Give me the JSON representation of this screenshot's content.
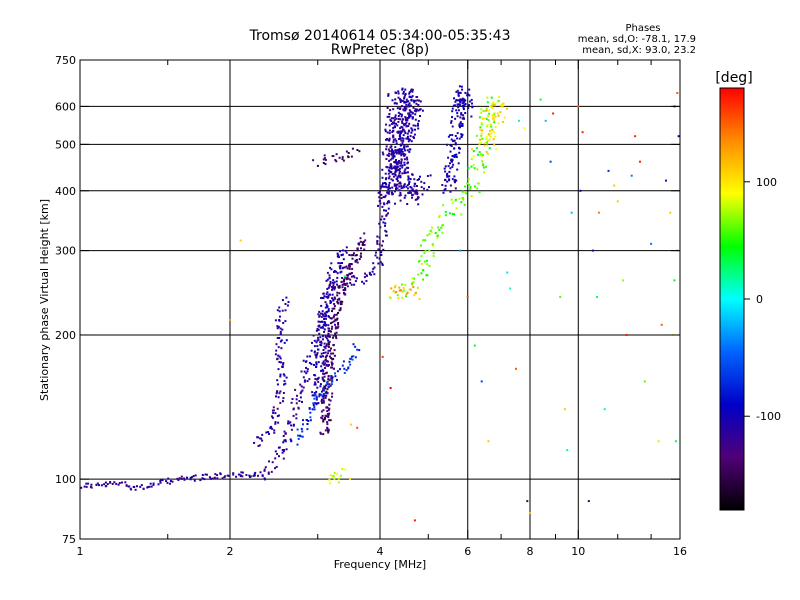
{
  "chart_data": {
    "type": "scatter",
    "title": "Tromsø 20140614 05:34:00-05:35:43",
    "subtitle": "RwPretec (8p)",
    "xlabel": "Frequency [MHz]",
    "ylabel": "Stationary phase Virtual Height [km]",
    "x_scale": "log",
    "y_scale": "log",
    "xlim": [
      1,
      16
    ],
    "ylim": [
      75,
      750
    ],
    "grid": true,
    "x_ticks": [
      1,
      2,
      4,
      6,
      8,
      10,
      16
    ],
    "x_minor_ticks": [
      1.5,
      3,
      5,
      7,
      9,
      12,
      14
    ],
    "x_gridlines": [
      2,
      4,
      6,
      8,
      10
    ],
    "y_ticks": [
      75,
      100,
      200,
      300,
      400,
      500,
      600,
      750
    ],
    "y_gridlines": [
      100,
      200,
      300,
      400,
      500,
      600
    ],
    "phases_box": {
      "title": "Phases",
      "line_o": "mean, sd,O: -78.1, 17.9",
      "line_x": "mean, sd,X:  93.0, 23.2"
    },
    "colorbar": {
      "label": "[deg]",
      "range": [
        -180,
        180
      ],
      "ticks": [
        100,
        0,
        -100
      ],
      "colors": [
        "#ff0000",
        "#ff8c00",
        "#ffff00",
        "#00ff00",
        "#00ffff",
        "#0064ff",
        "#0000c8",
        "#500078",
        "#000000"
      ]
    },
    "traces": [
      {
        "name": "",
        "phase": -118,
        "spread": 6,
        "density": 1,
        "points": [
          [
            1,
            97
          ],
          [
            1.1,
            97
          ],
          [
            1.2,
            98
          ],
          [
            1.3,
            96
          ],
          [
            1.4,
            97
          ],
          [
            1.5,
            99
          ],
          [
            1.6,
            100
          ],
          [
            1.8,
            101
          ],
          [
            2.0,
            102
          ],
          [
            2.2,
            102
          ],
          [
            2.35,
            101
          ]
        ]
      },
      {
        "name": "",
        "phase": -115,
        "spread": 10,
        "density": 1,
        "points": [
          [
            2.35,
            101
          ],
          [
            2.45,
            107
          ],
          [
            2.55,
            115
          ],
          [
            2.65,
            130
          ],
          [
            2.75,
            150
          ],
          [
            2.85,
            170
          ],
          [
            2.95,
            190
          ],
          [
            3.05,
            210
          ],
          [
            3.1,
            230
          ],
          [
            3.2,
            250
          ],
          [
            3.35,
            255
          ],
          [
            3.55,
            258
          ],
          [
            3.75,
            262
          ],
          [
            3.9,
            270
          ],
          [
            4.0,
            290
          ],
          [
            4.05,
            340
          ],
          [
            4.1,
            420
          ],
          [
            4.2,
            560
          ],
          [
            4.25,
            640
          ]
        ]
      },
      {
        "name": "",
        "phase": -112,
        "spread": 10,
        "density": 1,
        "points": [
          [
            2.25,
            118
          ],
          [
            2.4,
            125
          ],
          [
            2.5,
            140
          ],
          [
            2.55,
            170
          ],
          [
            2.5,
            200
          ],
          [
            2.55,
            230
          ],
          [
            2.6,
            240
          ]
        ]
      },
      {
        "name": "",
        "phase": -108,
        "spread": 12,
        "density": 2,
        "points": [
          [
            3.0,
            145
          ],
          [
            3.05,
            180
          ],
          [
            3.1,
            220
          ],
          [
            3.2,
            260
          ],
          [
            3.4,
            300
          ]
        ]
      },
      {
        "name": "",
        "phase": -140,
        "spread": 10,
        "density": 2,
        "points": [
          [
            3.1,
            125
          ],
          [
            3.15,
            160
          ],
          [
            3.2,
            200
          ],
          [
            3.3,
            240
          ],
          [
            3.5,
            280
          ],
          [
            3.7,
            320
          ]
        ]
      },
      {
        "name": "",
        "phase": -70,
        "spread": 10,
        "density": 1,
        "points": [
          [
            2.7,
            120
          ],
          [
            2.9,
            135
          ],
          [
            3.0,
            150
          ],
          [
            3.2,
            160
          ],
          [
            3.4,
            170
          ],
          [
            3.6,
            190
          ]
        ]
      },
      {
        "name": "",
        "phase": -112,
        "spread": 18,
        "density": 3,
        "points": [
          [
            4.1,
            380
          ],
          [
            4.3,
            430
          ],
          [
            4.5,
            520
          ],
          [
            4.7,
            600
          ],
          [
            4.5,
            640
          ],
          [
            4.3,
            470
          ],
          [
            4.6,
            390
          ],
          [
            4.9,
            420
          ]
        ]
      },
      {
        "name": "",
        "phase": -105,
        "spread": 14,
        "density": 2,
        "points": [
          [
            5.5,
            400
          ],
          [
            5.6,
            470
          ],
          [
            5.7,
            540
          ],
          [
            5.8,
            620
          ],
          [
            5.9,
            650
          ],
          [
            6.0,
            580
          ]
        ]
      },
      {
        "name": "",
        "phase": 60,
        "spread": 16,
        "density": 1,
        "points": [
          [
            4.3,
            245
          ],
          [
            4.5,
            250
          ],
          [
            4.7,
            260
          ],
          [
            4.9,
            275
          ],
          [
            5.0,
            300
          ],
          [
            5.2,
            330
          ],
          [
            5.5,
            360
          ],
          [
            5.8,
            380
          ],
          [
            6.1,
            400
          ],
          [
            6.3,
            450
          ],
          [
            6.5,
            520
          ],
          [
            6.6,
            600
          ],
          [
            6.7,
            640
          ]
        ]
      },
      {
        "name": "",
        "phase": 120,
        "spread": 12,
        "density": 1,
        "points": [
          [
            4.25,
            240
          ],
          [
            4.4,
            250
          ],
          [
            4.6,
            245
          ],
          [
            4.8,
            240
          ]
        ]
      },
      {
        "name": "",
        "phase": 100,
        "spread": 14,
        "density": 1,
        "points": [
          [
            6.3,
            480
          ],
          [
            6.6,
            560
          ],
          [
            6.9,
            620
          ],
          [
            7.0,
            600
          ],
          [
            6.8,
            500
          ]
        ]
      },
      {
        "name": "",
        "phase": 90,
        "spread": 14,
        "density": 1,
        "points": [
          [
            3.25,
            101
          ],
          [
            3.4,
            102
          ],
          [
            3.2,
            103
          ]
        ]
      },
      {
        "name": "",
        "phase": -140,
        "spread": 10,
        "density": 1,
        "points": [
          [
            3.0,
            460
          ],
          [
            3.3,
            470
          ],
          [
            3.6,
            480
          ]
        ]
      }
    ],
    "scatter": [
      [
        2.0,
        215,
        130
      ],
      [
        2.1,
        315,
        110
      ],
      [
        2.6,
        195,
        -90
      ],
      [
        3.4,
        265,
        20
      ],
      [
        3.5,
        130,
        110
      ],
      [
        3.6,
        128,
        160
      ],
      [
        4.05,
        180,
        160
      ],
      [
        4.2,
        155,
        180
      ],
      [
        4.7,
        82,
        175
      ],
      [
        5.8,
        300,
        -30
      ],
      [
        6.0,
        240,
        160
      ],
      [
        6.2,
        190,
        40
      ],
      [
        6.4,
        160,
        -60
      ],
      [
        6.6,
        120,
        110
      ],
      [
        7.2,
        270,
        -10
      ],
      [
        7.3,
        250,
        10
      ],
      [
        7.5,
        170,
        150
      ],
      [
        7.6,
        560,
        20
      ],
      [
        7.8,
        540,
        90
      ],
      [
        7.9,
        90,
        -150
      ],
      [
        8.0,
        85,
        120
      ],
      [
        8.4,
        620,
        40
      ],
      [
        8.6,
        560,
        -20
      ],
      [
        8.8,
        460,
        -60
      ],
      [
        8.9,
        580,
        170
      ],
      [
        9.2,
        240,
        60
      ],
      [
        9.4,
        140,
        110
      ],
      [
        9.5,
        115,
        20
      ],
      [
        9.7,
        360,
        -20
      ],
      [
        10.0,
        600,
        150
      ],
      [
        10.1,
        400,
        -100
      ],
      [
        10.2,
        530,
        170
      ],
      [
        10.5,
        90,
        -150
      ],
      [
        10.7,
        300,
        -110
      ],
      [
        10.9,
        240,
        30
      ],
      [
        11.0,
        360,
        140
      ],
      [
        11.3,
        140,
        20
      ],
      [
        11.5,
        440,
        -70
      ],
      [
        11.8,
        410,
        110
      ],
      [
        12.0,
        380,
        110
      ],
      [
        12.3,
        260,
        70
      ],
      [
        12.5,
        200,
        170
      ],
      [
        12.8,
        430,
        -40
      ],
      [
        13.0,
        520,
        170
      ],
      [
        13.3,
        460,
        170
      ],
      [
        13.6,
        160,
        60
      ],
      [
        14.0,
        310,
        -40
      ],
      [
        14.5,
        120,
        80
      ],
      [
        15.0,
        420,
        -80
      ],
      [
        15.3,
        360,
        110
      ],
      [
        15.6,
        260,
        40
      ],
      [
        15.8,
        640,
        150
      ],
      [
        15.9,
        520,
        -100
      ],
      [
        15.5,
        200,
        90
      ],
      [
        15.7,
        120,
        30
      ],
      [
        15.8,
        300,
        -10
      ],
      [
        15.6,
        600,
        -120
      ],
      [
        14.7,
        210,
        150
      ]
    ]
  }
}
